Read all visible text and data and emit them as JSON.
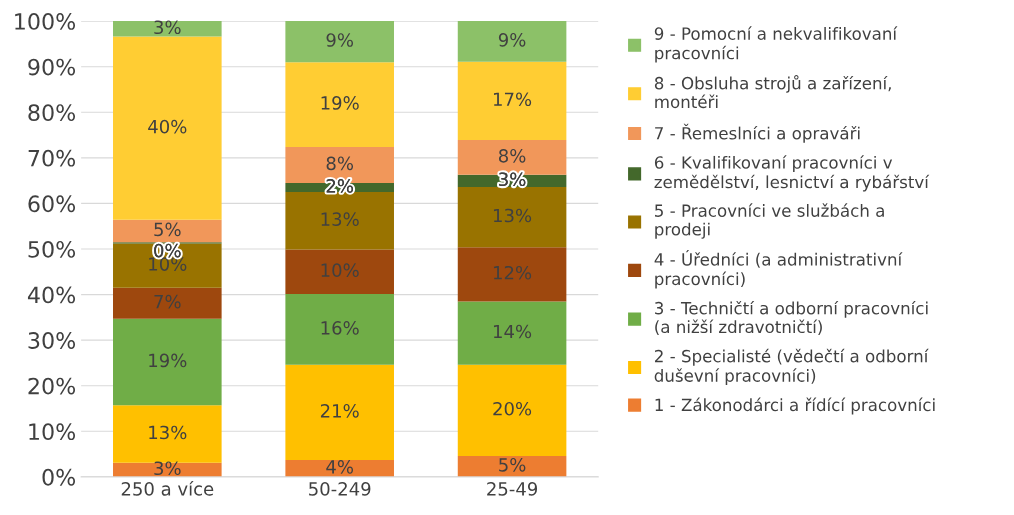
{
  "chart_data": {
    "type": "bar",
    "stacked": true,
    "categories": [
      "250 a více",
      "50-249",
      "25-49"
    ],
    "series": [
      {
        "name": "1 - Zákonodárci a řídící pracovníci",
        "color": "#ed7d31",
        "values": [
          3.1,
          3.7,
          4.6
        ],
        "value_labels": [
          "3%",
          "4%",
          "5%"
        ]
      },
      {
        "name": "2 - Specialisté (vědečtí a odborní duševní pracovníci)",
        "color": "#ffc000",
        "values": [
          12.6,
          20.9,
          20.0
        ],
        "value_labels": [
          "13%",
          "21%",
          "20%"
        ]
      },
      {
        "name": "3 - Techničtí a odborní pracovníci (a nižší zdravotničtí)",
        "color": "#70ad47",
        "values": [
          19.0,
          15.5,
          13.9
        ],
        "value_labels": [
          "19%",
          "16%",
          "14%"
        ]
      },
      {
        "name": "4 - Úředníci (a administrativní pracovníci)",
        "color": "#9e480e",
        "values": [
          6.8,
          9.8,
          11.9
        ],
        "value_labels": [
          "7%",
          "10%",
          "12%"
        ]
      },
      {
        "name": "5 - Pracovníci ve službách a prodeji",
        "color": "#997300",
        "values": [
          9.7,
          12.6,
          13.2
        ],
        "value_labels": [
          "10%",
          "13%",
          "13%"
        ]
      },
      {
        "name": "6 - Kvalifikovaní pracovníci v zemědělství, lesnictví a rybářství",
        "color": "#43682b",
        "values": [
          0.3,
          2.0,
          2.7
        ],
        "value_labels": [
          "0%",
          "2%",
          "3%"
        ]
      },
      {
        "name": "7 - Řemeslníci a opraváři",
        "color": "#f1975a",
        "values": [
          4.9,
          7.9,
          7.6
        ],
        "value_labels": [
          "5%",
          "8%",
          "8%"
        ]
      },
      {
        "name": "8 - Obsluha strojů a zařízení, montéři",
        "color": "#ffcd33",
        "values": [
          40.2,
          18.6,
          17.2
        ],
        "value_labels": [
          "40%",
          "19%",
          "17%"
        ]
      },
      {
        "name": "9 - Pomocní a nekvalifikovaní pracovníci",
        "color": "#8cc168",
        "values": [
          3.4,
          9.0,
          8.9
        ],
        "value_labels": [
          "3%",
          "9%",
          "9%"
        ]
      }
    ],
    "ylim": [
      0,
      100
    ],
    "yticks": [
      {
        "value": 0,
        "label": "0%"
      },
      {
        "value": 10,
        "label": "10%"
      },
      {
        "value": 20,
        "label": "20%"
      },
      {
        "value": 30,
        "label": "30%"
      },
      {
        "value": 40,
        "label": "40%"
      },
      {
        "value": 50,
        "label": "50%"
      },
      {
        "value": 60,
        "label": "60%"
      },
      {
        "value": 70,
        "label": "70%"
      },
      {
        "value": 80,
        "label": "80%"
      },
      {
        "value": 90,
        "label": "90%"
      },
      {
        "value": 100,
        "label": "100%"
      }
    ],
    "grid": "y",
    "legend": "right"
  }
}
